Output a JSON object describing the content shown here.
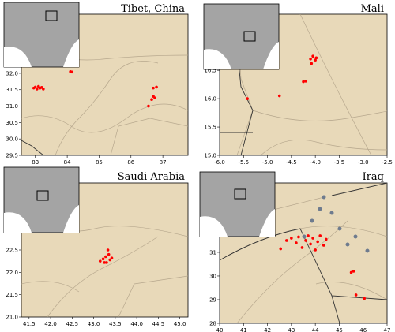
{
  "panels": [
    {
      "title": "Tibet, China",
      "xlim": [
        82.56,
        87.79
      ],
      "ylim": [
        29.5,
        33.8
      ],
      "xticks": [
        83,
        84,
        85,
        86,
        87
      ],
      "yticks": [
        {
          "value": 29.5,
          "label": "29.5"
        },
        {
          "value": 30,
          "label": "30.0"
        },
        {
          "value": 30.5,
          "label": "30.5"
        },
        {
          "value": 31,
          "label": "31.0"
        },
        {
          "value": 31.5,
          "label": "31.5"
        },
        {
          "value": 32,
          "label": "32.0"
        }
      ],
      "points": [
        [
          82.95,
          31.55
        ],
        [
          83.0,
          31.58
        ],
        [
          83.05,
          31.52
        ],
        [
          83.1,
          31.6
        ],
        [
          83.15,
          31.55
        ],
        [
          83.2,
          31.57
        ],
        [
          83.25,
          31.52
        ],
        [
          84.1,
          32.05
        ],
        [
          84.15,
          32.04
        ],
        [
          86.55,
          31.0
        ],
        [
          86.65,
          31.2
        ],
        [
          86.7,
          31.3
        ],
        [
          86.75,
          31.25
        ],
        [
          86.7,
          31.55
        ],
        [
          86.8,
          31.58
        ]
      ]
    },
    {
      "title": "Mali",
      "xlim": [
        -6,
        -2.5
      ],
      "ylim": [
        15,
        17.49
      ],
      "xticks": [
        {
          "value": -6,
          "label": "-6.0"
        },
        {
          "value": -5.5,
          "label": "-5.5"
        },
        {
          "value": -5,
          "label": "-5.0"
        },
        {
          "value": -4.5,
          "label": "-4.5"
        },
        {
          "value": -4,
          "label": "-4.0"
        },
        {
          "value": -3.5,
          "label": "-3.5"
        },
        {
          "value": -3,
          "label": "-3.0"
        },
        {
          "value": -2.5,
          "label": "-2.5"
        }
      ],
      "yticks": [
        {
          "value": 15,
          "label": "15.0"
        },
        {
          "value": 15.5,
          "label": "15.5"
        },
        {
          "value": 16,
          "label": "16.0"
        },
        {
          "value": 16.5,
          "label": "16.5"
        }
      ],
      "points": [
        [
          -4.1,
          16.7
        ],
        [
          -4.05,
          16.75
        ],
        [
          -4.0,
          16.68
        ],
        [
          -4.08,
          16.62
        ],
        [
          -3.98,
          16.72
        ],
        [
          -4.25,
          16.3
        ],
        [
          -4.2,
          16.31
        ],
        [
          -4.75,
          16.05
        ],
        [
          -5.42,
          16.0
        ]
      ]
    },
    {
      "title": "Saudi Arabia",
      "xlim": [
        41.32,
        45.19
      ],
      "ylim": [
        21,
        24
      ],
      "xticks": [
        {
          "value": 41.5,
          "label": "41.5"
        },
        {
          "value": 42,
          "label": "42.0"
        },
        {
          "value": 42.5,
          "label": "42.5"
        },
        {
          "value": 43,
          "label": "43.0"
        },
        {
          "value": 43.5,
          "label": "43.5"
        },
        {
          "value": 44,
          "label": "44.0"
        },
        {
          "value": 44.5,
          "label": "44.5"
        },
        {
          "value": 45,
          "label": "45.0"
        }
      ],
      "yticks": [
        {
          "value": 21,
          "label": "21.0"
        },
        {
          "value": 21.5,
          "label": "21.5"
        },
        {
          "value": 22,
          "label": "22.0"
        },
        {
          "value": 22.5,
          "label": "22.5"
        }
      ],
      "points": [
        [
          43.15,
          22.25
        ],
        [
          43.22,
          22.3
        ],
        [
          43.28,
          22.35
        ],
        [
          43.3,
          22.22
        ],
        [
          43.35,
          22.4
        ],
        [
          43.38,
          22.28
        ],
        [
          43.42,
          22.32
        ],
        [
          43.33,
          22.5
        ],
        [
          43.25,
          22.22
        ]
      ]
    },
    {
      "title": "Iraq",
      "xlim": [
        40,
        47
      ],
      "ylim": [
        28,
        33.93
      ],
      "xticks": [
        40,
        41,
        42,
        43,
        44,
        45,
        46,
        47
      ],
      "yticks": [
        28,
        29,
        30,
        31
      ],
      "points": [
        [
          42.55,
          31.15
        ],
        [
          42.8,
          31.5
        ],
        [
          43.0,
          31.6
        ],
        [
          43.2,
          31.4
        ],
        [
          43.3,
          31.65
        ],
        [
          43.45,
          31.2
        ],
        [
          43.6,
          31.5
        ],
        [
          43.7,
          31.7
        ],
        [
          43.8,
          31.35
        ],
        [
          43.9,
          31.6
        ],
        [
          44.0,
          31.1
        ],
        [
          44.1,
          31.45
        ],
        [
          44.2,
          31.7
        ],
        [
          44.35,
          31.3
        ],
        [
          44.45,
          31.55
        ],
        [
          45.5,
          30.15
        ],
        [
          45.6,
          30.2
        ],
        [
          45.7,
          29.2
        ],
        [
          46.05,
          29.05
        ]
      ]
    }
  ]
}
